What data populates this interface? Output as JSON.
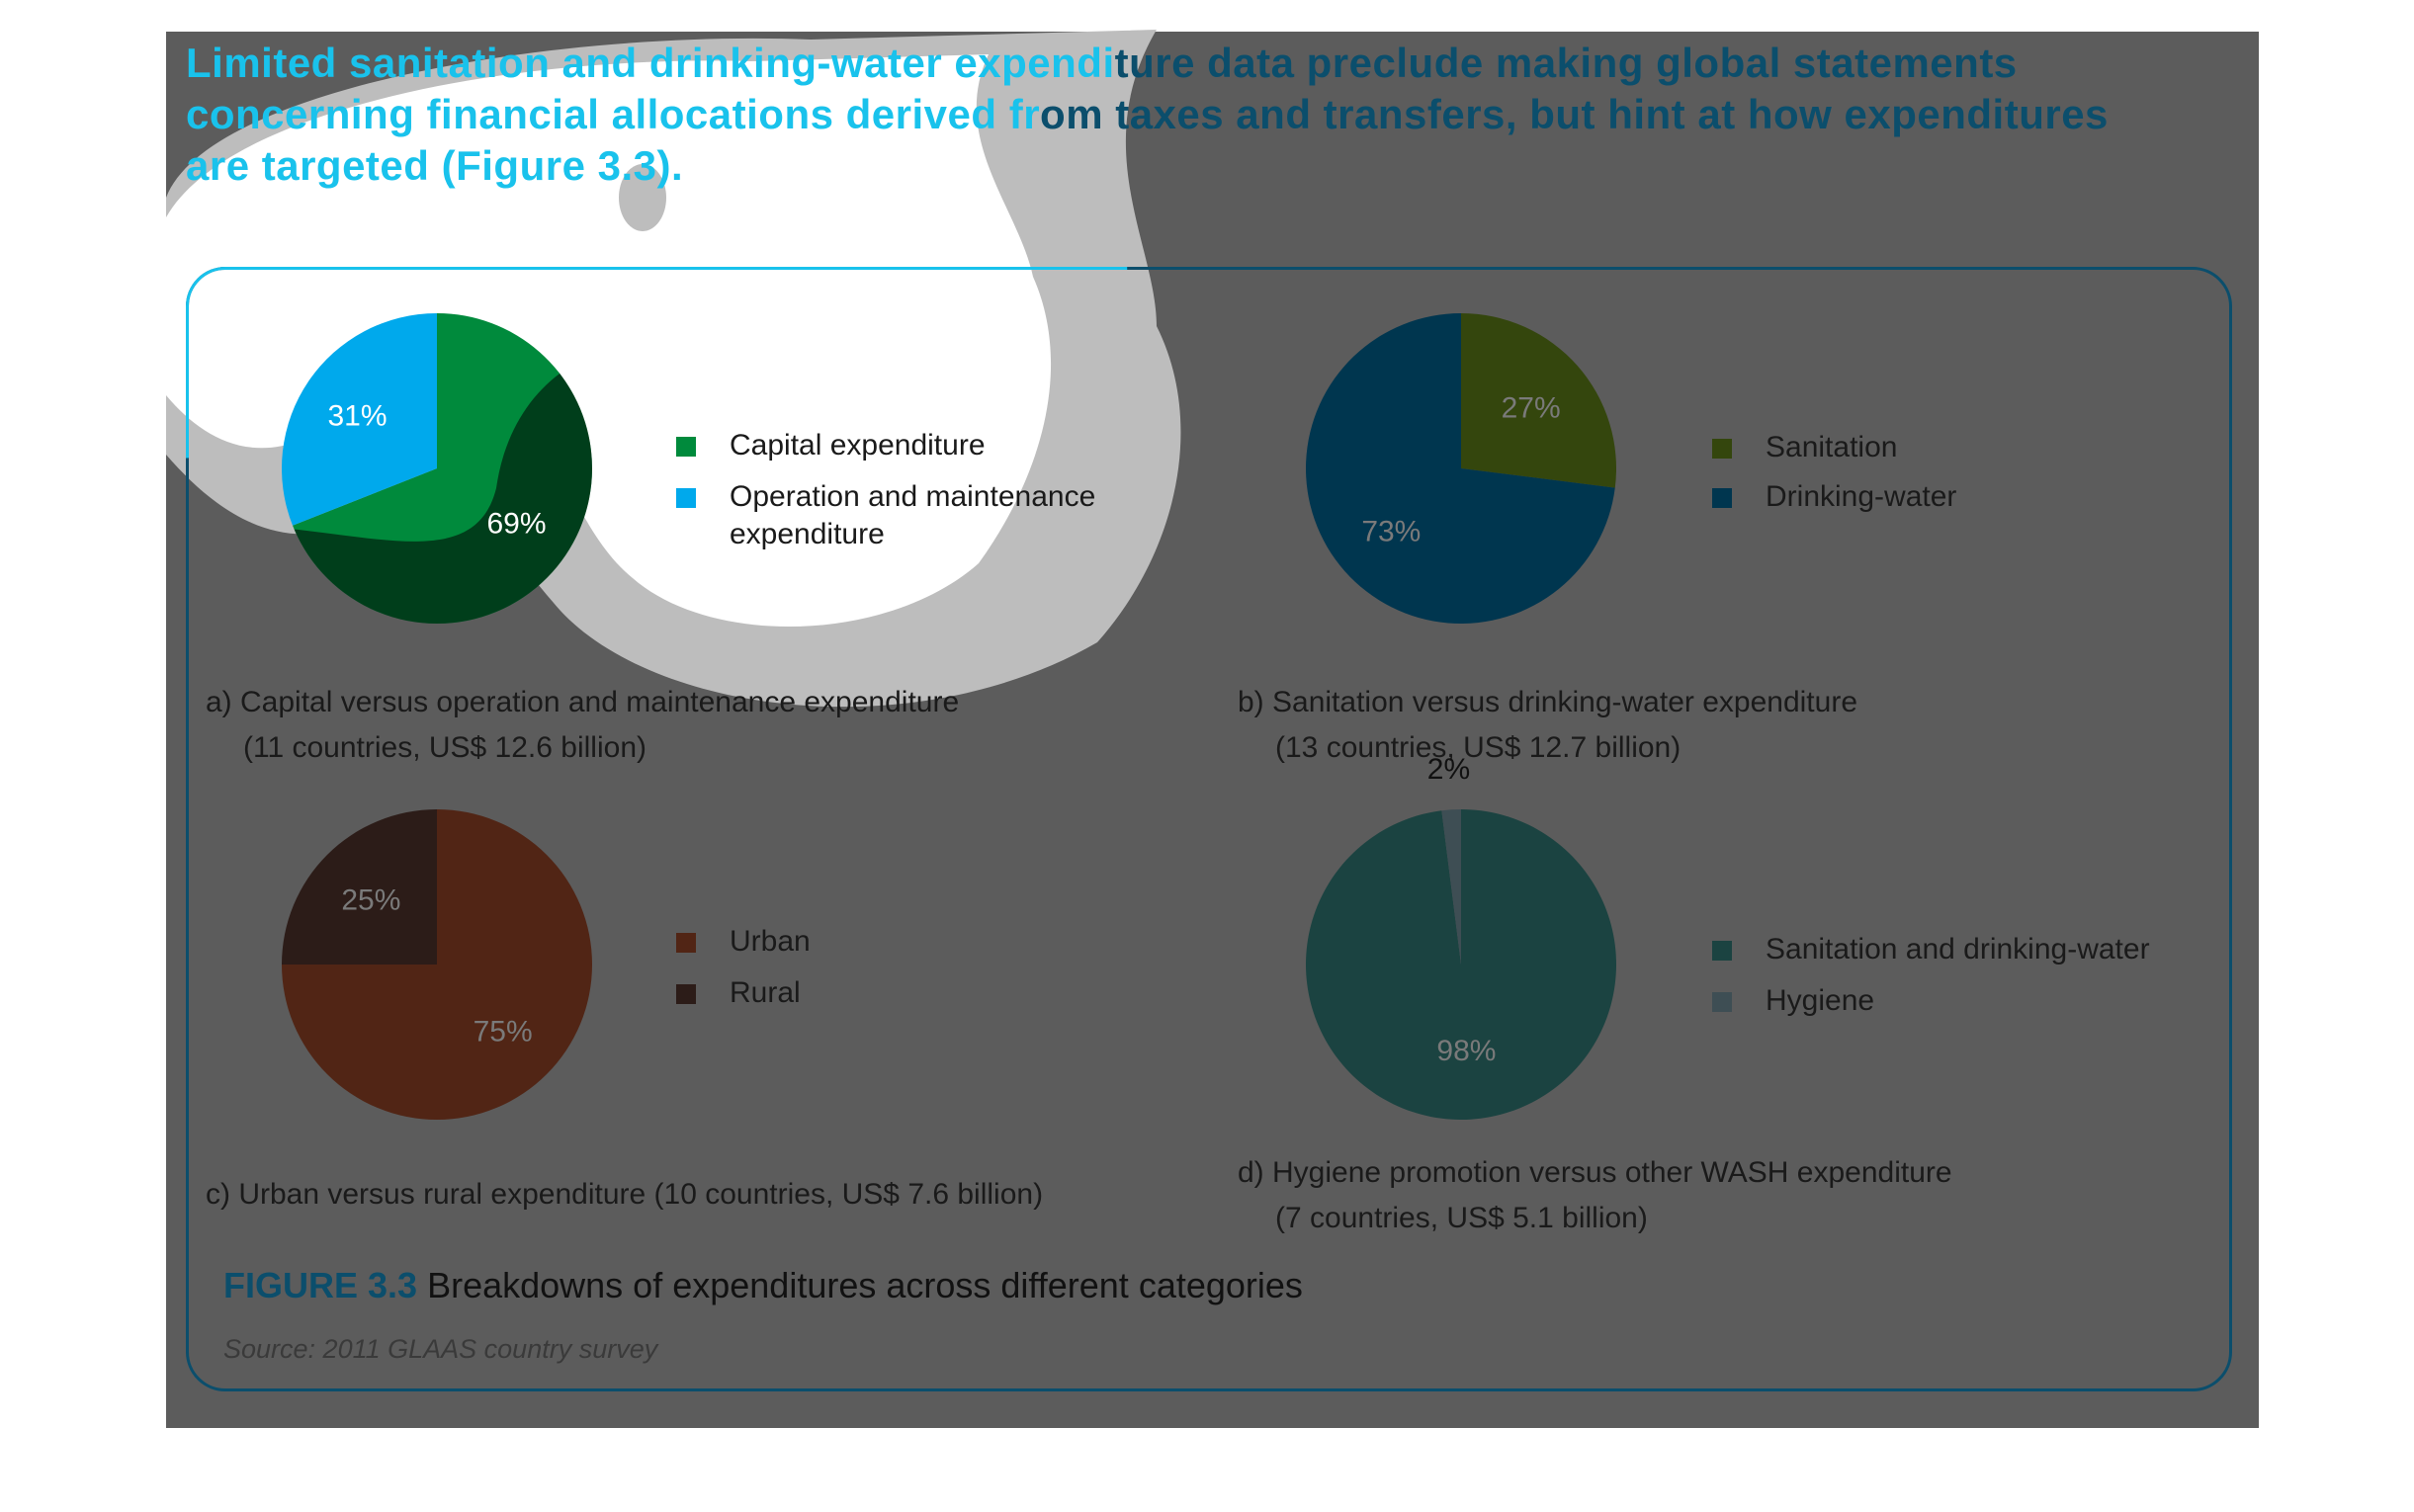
{
  "heading": {
    "line1_lit": "Limited sanitation and drinking-water expendi",
    "line1_dim": "ture data preclude making global statements",
    "line2_lit": "concerning financial allocations derived fr",
    "line2_dim": "om taxes and transfers, but hint at how expenditures",
    "line3": "are targeted (Figure 3.3)."
  },
  "figure": {
    "number": "FIGURE 3.3",
    "title": "Breakdowns of expenditures across different categories",
    "source": "Source: 2011 GLAAS country survey"
  },
  "colors": {
    "highlight": "#19c2ec",
    "dark_blue": "#0b4e6c",
    "dim_overlay": "#5c5c5c"
  },
  "chart_data": [
    {
      "type": "pie",
      "id": "a",
      "caption_line1": "a) Capital versus operation and maintenance expenditure",
      "caption_line2": "(11 countries, US$ 12.6 billion)",
      "slices": [
        {
          "name": "Capital expenditure",
          "value": 69,
          "label": "69%",
          "color": "#008a3c"
        },
        {
          "name": "Operation and maintenance expenditure",
          "value": 31,
          "label": "31%",
          "color": "#00a9ec"
        }
      ]
    },
    {
      "type": "pie",
      "id": "b",
      "caption_line1": "b) Sanitation versus drinking-water expenditure",
      "caption_line2": "(13 countries, US$ 12.7 billion)",
      "slices": [
        {
          "name": "Sanitation",
          "value": 27,
          "label": "27%",
          "color": "#34460d"
        },
        {
          "name": "Drinking-water",
          "value": 73,
          "label": "73%",
          "color": "#00364f"
        }
      ]
    },
    {
      "type": "pie",
      "id": "c",
      "caption_line1": "c) Urban versus rural expenditure (10 countries, US$ 7.6 billion)",
      "caption_line2": "",
      "slices": [
        {
          "name": "Urban",
          "value": 75,
          "label": "75%",
          "color": "#512515"
        },
        {
          "name": "Rural",
          "value": 25,
          "label": "25%",
          "color": "#2c1c18"
        }
      ]
    },
    {
      "type": "pie",
      "id": "d",
      "caption_line1": "d) Hygiene promotion versus other WASH expenditure",
      "caption_line2": "(7 countries, US$ 5.1 billion)",
      "slices": [
        {
          "name": "Sanitation and drinking-water",
          "value": 98,
          "label": "98%",
          "color": "#1b4341"
        },
        {
          "name": "Hygiene",
          "value": 2,
          "label": "2%",
          "color": "#3e4e54"
        }
      ]
    }
  ]
}
